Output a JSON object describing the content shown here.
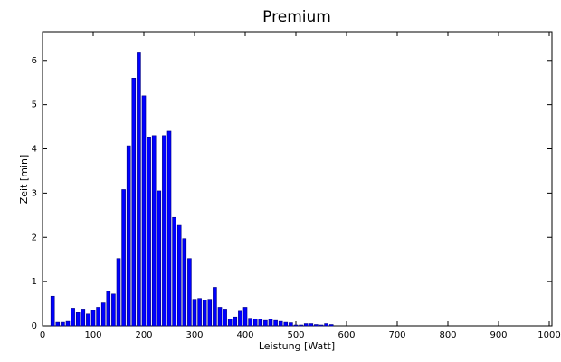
{
  "chart_data": {
    "type": "bar",
    "title": "Premium",
    "x_label": "Leistung [Watt]",
    "y_label": "Zeit [min]",
    "x": [
      20,
      30,
      40,
      50,
      60,
      70,
      80,
      90,
      100,
      110,
      120,
      130,
      140,
      150,
      160,
      170,
      180,
      190,
      200,
      210,
      220,
      230,
      240,
      250,
      260,
      270,
      280,
      290,
      300,
      310,
      320,
      330,
      340,
      350,
      360,
      370,
      380,
      390,
      400,
      410,
      420,
      430,
      440,
      450,
      460,
      470,
      480,
      490,
      500,
      510,
      520,
      530,
      540,
      550,
      560,
      570
    ],
    "values": [
      0.67,
      0.08,
      0.08,
      0.1,
      0.4,
      0.3,
      0.38,
      0.27,
      0.35,
      0.42,
      0.52,
      0.78,
      0.72,
      1.52,
      3.08,
      4.07,
      5.6,
      6.17,
      5.2,
      4.27,
      4.3,
      3.05,
      4.3,
      4.4,
      2.45,
      2.27,
      1.97,
      1.52,
      0.6,
      0.62,
      0.58,
      0.6,
      0.87,
      0.42,
      0.38,
      0.15,
      0.2,
      0.33,
      0.42,
      0.17,
      0.15,
      0.15,
      0.12,
      0.15,
      0.12,
      0.1,
      0.08,
      0.07,
      0.02,
      0.02,
      0.05,
      0.05,
      0.03,
      0.02,
      0.05,
      0.03
    ],
    "color": "#0000ff",
    "xlim": [
      0,
      1000
    ],
    "xticks": [
      0,
      100,
      200,
      300,
      400,
      500,
      600,
      700,
      800,
      900,
      1000
    ],
    "ylim": [
      0,
      6.65
    ],
    "yticks": [
      0,
      1,
      2,
      3,
      4,
      5,
      6
    ]
  }
}
